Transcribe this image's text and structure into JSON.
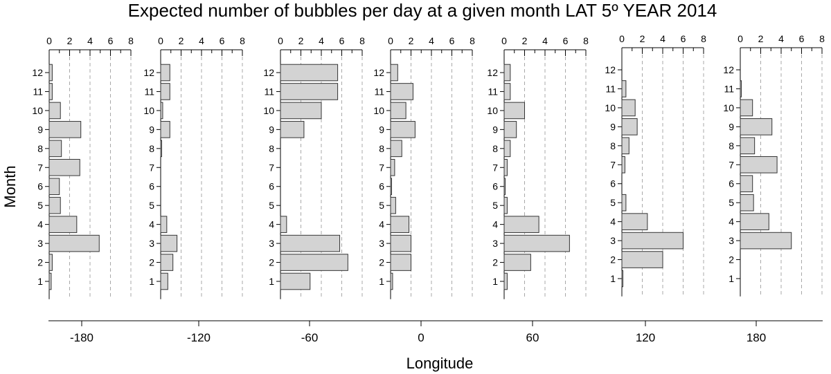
{
  "chart_data": {
    "type": "bar",
    "title": "Expected number of bubbles per day at a given month LAT 5º YEAR 2014",
    "xlabel": "Longitude",
    "ylabel": "Month",
    "longitude_ticks": [
      "-180",
      "-120",
      "-60",
      "0",
      "60",
      "120",
      "180"
    ],
    "month_categories": [
      "1",
      "2",
      "3",
      "4",
      "5",
      "6",
      "7",
      "8",
      "9",
      "10",
      "11",
      "12"
    ],
    "bubble_axis_ticks": [
      "0",
      "2",
      "4",
      "6",
      "8"
    ],
    "bubble_axis_range": [
      0,
      8
    ],
    "grid": "dashed vertical lines at 2, 4, 6, 8",
    "bar_color": "#d3d3d3",
    "panels": [
      {
        "values": [
          0.2,
          0.3,
          4.9,
          2.7,
          1.1,
          1.0,
          3.0,
          1.2,
          3.1,
          1.1,
          0.3,
          0.3
        ]
      },
      {
        "values": [
          0.7,
          1.2,
          1.6,
          0.6,
          0.0,
          0.0,
          0.0,
          0.1,
          0.9,
          0.2,
          0.9,
          0.9
        ]
      },
      {
        "values": [
          2.9,
          6.6,
          5.8,
          0.6,
          0.0,
          0.0,
          0.0,
          0.0,
          2.3,
          4.0,
          5.6,
          5.6
        ]
      },
      {
        "values": [
          0.2,
          2.0,
          2.0,
          1.8,
          0.5,
          0.1,
          0.4,
          1.1,
          2.4,
          1.5,
          2.2,
          0.7
        ]
      },
      {
        "values": [
          0.3,
          2.6,
          6.4,
          3.4,
          0.3,
          0.1,
          0.3,
          0.6,
          1.2,
          2.0,
          0.6,
          0.6
        ]
      },
      {
        "values": [
          0.1,
          4.0,
          6.0,
          2.5,
          0.4,
          0.0,
          0.3,
          0.7,
          1.5,
          1.3,
          0.4,
          0.0
        ]
      },
      {
        "values": [
          0.0,
          0.0,
          5.0,
          2.8,
          1.3,
          1.2,
          3.6,
          1.4,
          3.1,
          1.2,
          0.1,
          0.0
        ]
      }
    ]
  }
}
